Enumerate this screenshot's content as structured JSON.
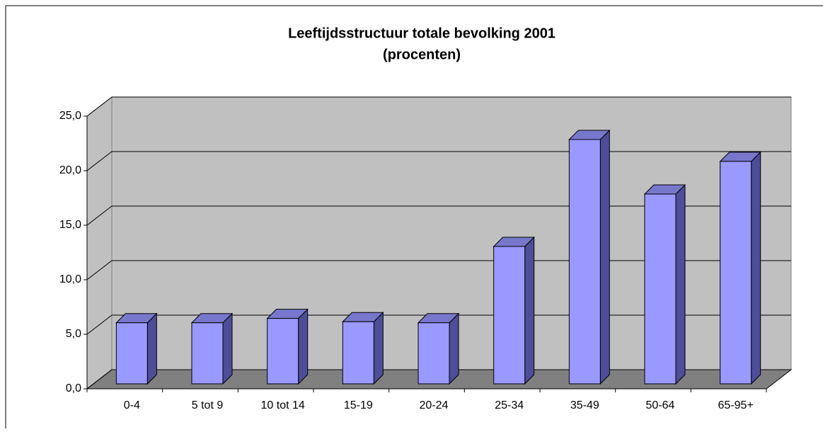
{
  "chart_data": {
    "type": "bar3d",
    "title": "Leeftijdsstructuur totale bevolking 2001",
    "subtitle": "(procenten)",
    "categories": [
      "0-4",
      "5 tot 9",
      "10 tot 14",
      "15-19",
      "20-24",
      "25-34",
      "35-49",
      "50-64",
      "65-95+"
    ],
    "values": [
      5.6,
      5.6,
      6.0,
      5.7,
      5.6,
      12.6,
      22.4,
      17.4,
      20.4
    ],
    "color": "#9999ff",
    "ylim": [
      0,
      25
    ],
    "yticks": [
      {
        "value": 0,
        "label": "0,0"
      },
      {
        "value": 5,
        "label": "5,0"
      },
      {
        "value": 10,
        "label": "10,0"
      },
      {
        "value": 15,
        "label": "15,0"
      },
      {
        "value": 20,
        "label": "20,0"
      },
      {
        "value": 25,
        "label": "25,0"
      }
    ],
    "grid": true
  }
}
